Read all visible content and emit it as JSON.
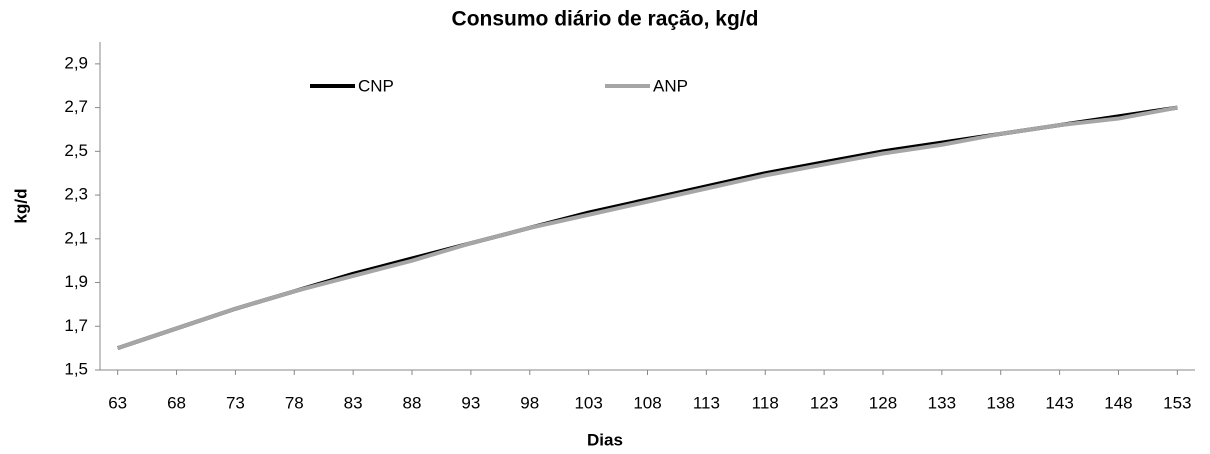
{
  "chart_data": {
    "type": "line",
    "title": "Consumo diário de ração, kg/d",
    "xlabel": "Dias",
    "ylabel": "kg/d",
    "x": [
      63,
      68,
      73,
      78,
      83,
      88,
      93,
      98,
      103,
      108,
      113,
      118,
      123,
      128,
      133,
      138,
      143,
      148,
      153
    ],
    "series": [
      {
        "name": "CNP",
        "color": "#000000",
        "values": [
          1.6,
          1.69,
          1.78,
          1.86,
          1.94,
          2.01,
          2.08,
          2.15,
          2.22,
          2.28,
          2.34,
          2.4,
          2.45,
          2.5,
          2.54,
          2.58,
          2.62,
          2.66,
          2.7
        ]
      },
      {
        "name": "ANP",
        "color": "#a6a6a6",
        "values": [
          1.6,
          1.69,
          1.78,
          1.86,
          1.93,
          2.0,
          2.08,
          2.15,
          2.21,
          2.27,
          2.33,
          2.39,
          2.44,
          2.49,
          2.53,
          2.58,
          2.62,
          2.65,
          2.7
        ]
      }
    ],
    "xlim": [
      61.5,
      154.5
    ],
    "xticks": [
      63,
      68,
      73,
      78,
      83,
      88,
      93,
      98,
      103,
      108,
      113,
      118,
      123,
      128,
      133,
      138,
      143,
      148,
      153
    ],
    "ylim": [
      1.5,
      3.0
    ],
    "yticks": [
      {
        "value": 1.5,
        "label": "1,5"
      },
      {
        "value": 1.7,
        "label": "1,7"
      },
      {
        "value": 1.9,
        "label": "1,9"
      },
      {
        "value": 2.1,
        "label": "2,1"
      },
      {
        "value": 2.3,
        "label": "2,3"
      },
      {
        "value": 2.5,
        "label": "2,5"
      },
      {
        "value": 2.7,
        "label": "2,7"
      },
      {
        "value": 2.9,
        "label": "2,9"
      }
    ],
    "grid": false,
    "legend": "top"
  }
}
